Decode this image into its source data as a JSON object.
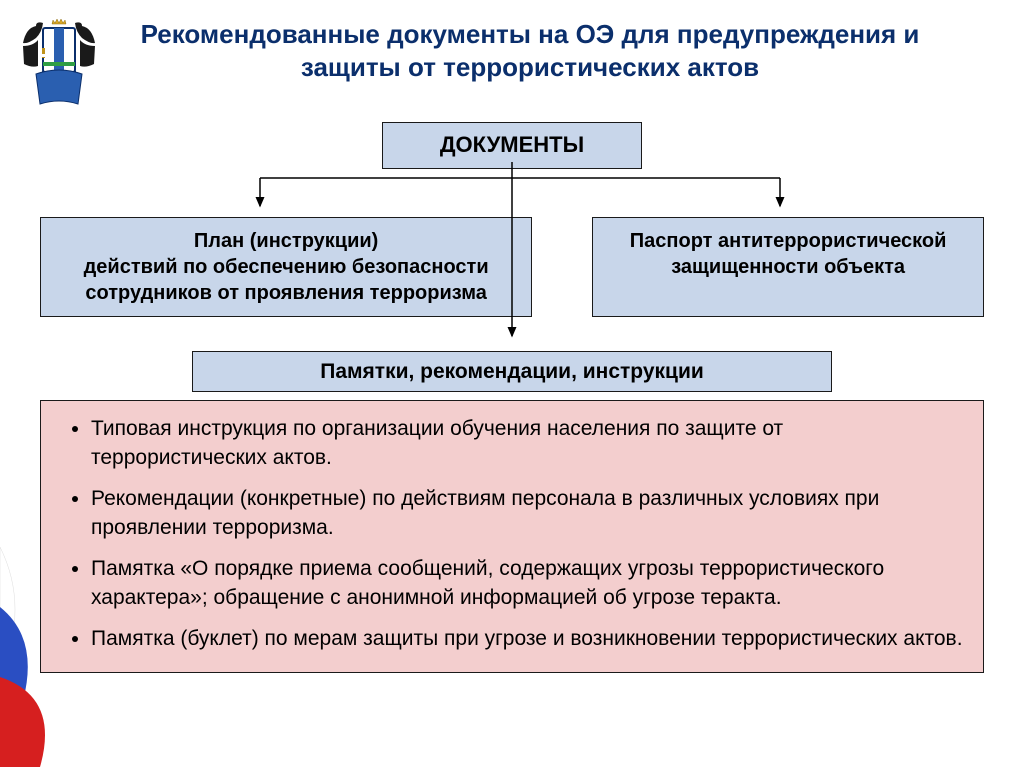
{
  "colors": {
    "title": "#0b2f6c",
    "box_bg": "#c8d6ea",
    "list_bg": "#f3cece",
    "border": "#1a1a1a",
    "text": "#000000"
  },
  "title": "Рекомендованные документы на ОЭ для предупреждения и защиты от террористических актов",
  "root_box": "ДОКУМЕНТЫ",
  "left_box": "План (инструкции)\nдействий по обеспечению безопасности сотрудников от проявления терроризма",
  "right_box": "Паспорт антитеррористической защищенности объекта",
  "mid_box": "Памятки, рекомендации, инструкции",
  "list_items": [
    "Типовая инструкция по организации обучения населения по защите от террористических актов.",
    "Рекомендации (конкретные) по действиям персонала в различных условиях при проявлении терроризма.",
    "Памятка «О порядке приема сообщений, содержащих угрозы террористического характера»; обращение с анонимной информацией об угрозе теракта.",
    "Памятка (буклет) по мерам защиты при угрозе и возникновении террористических актов."
  ],
  "emblem": {
    "sable_color": "#1a1a1a",
    "shield_white": "#ffffff",
    "shield_blue": "#2a5fb0",
    "shield_green": "#2f9e44",
    "crown_gold": "#d9a827"
  },
  "flag": {
    "white": "#ffffff",
    "blue": "#2a4ec2",
    "red": "#d61f1f"
  }
}
